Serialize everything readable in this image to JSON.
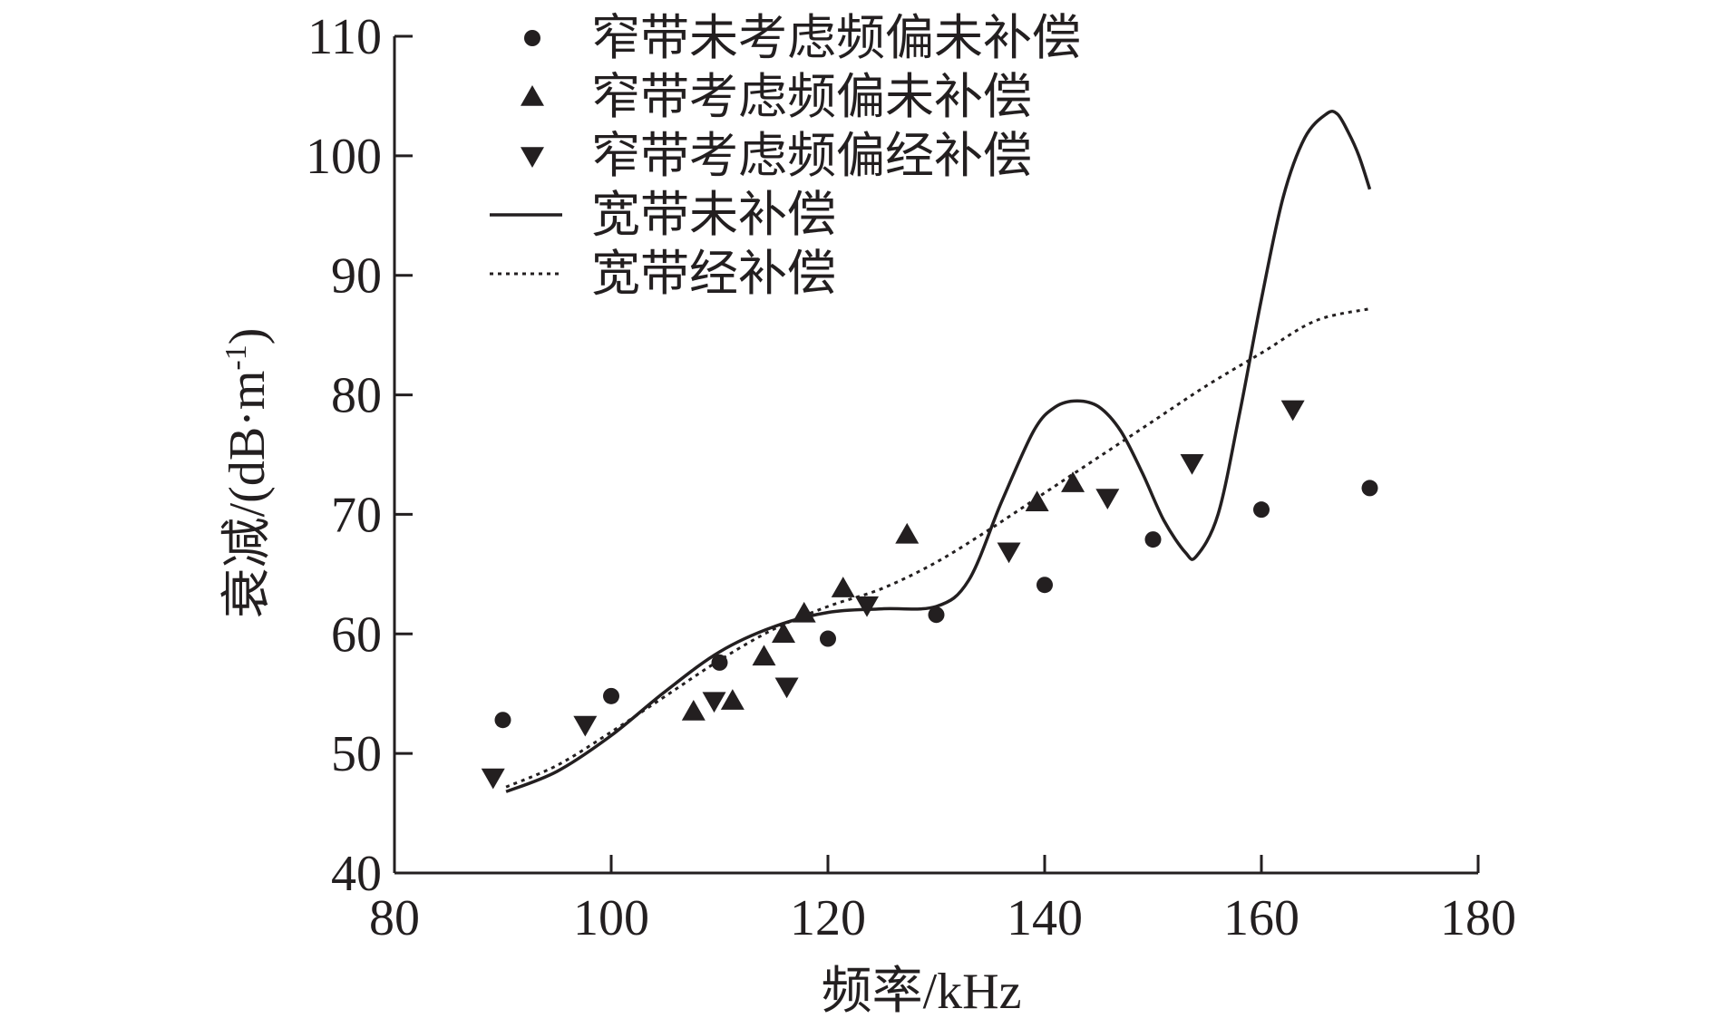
{
  "chart_data": {
    "type": "scatter",
    "xlabel": "频率/kHz",
    "ylabel": "衰减/(dB·m",
    "ylabel_superscript": "-1",
    "ylabel_close": ")",
    "xlim": [
      80,
      180
    ],
    "ylim": [
      40,
      110
    ],
    "xticks": [
      80,
      100,
      120,
      140,
      160,
      180
    ],
    "yticks": [
      40,
      50,
      60,
      70,
      80,
      90,
      100,
      110
    ],
    "grid": false,
    "legend_position": "top-left",
    "color": "#231f20",
    "series": [
      {
        "name": "窄带未考虑频偏未补偿",
        "marker": "circle",
        "points": [
          [
            90,
            52.8
          ],
          [
            100,
            54.8
          ],
          [
            110,
            57.6
          ],
          [
            120,
            59.6
          ],
          [
            130,
            61.6
          ],
          [
            140,
            64.1
          ],
          [
            150,
            67.9
          ],
          [
            160,
            70.4
          ],
          [
            170,
            72.2
          ]
        ]
      },
      {
        "name": "窄带考虑频偏未补偿",
        "marker": "triangle-up",
        "points": [
          [
            107.6,
            53.5
          ],
          [
            111.2,
            54.4
          ],
          [
            114.1,
            58.1
          ],
          [
            115.9,
            60.0
          ],
          [
            117.8,
            61.7
          ],
          [
            121.4,
            63.8
          ],
          [
            127.3,
            68.3
          ],
          [
            139.3,
            71.0
          ],
          [
            142.6,
            72.6
          ]
        ]
      },
      {
        "name": "窄带考虑频偏经补偿",
        "marker": "triangle-down",
        "points": [
          [
            89.1,
            48.0
          ],
          [
            97.6,
            52.4
          ],
          [
            109.5,
            54.4
          ],
          [
            116.2,
            55.6
          ],
          [
            123.6,
            62.4
          ],
          [
            136.7,
            66.9
          ],
          [
            145.8,
            71.4
          ],
          [
            153.6,
            74.3
          ],
          [
            162.9,
            78.8
          ]
        ]
      },
      {
        "name": "宽带未补偿",
        "style": "solid",
        "points": [
          [
            90.3,
            46.8
          ],
          [
            95,
            48.5
          ],
          [
            100,
            51.5
          ],
          [
            105,
            55.2
          ],
          [
            110,
            58.5
          ],
          [
            115,
            60.6
          ],
          [
            120,
            61.8
          ],
          [
            125,
            62.1
          ],
          [
            130,
            62.3
          ],
          [
            133,
            64.5
          ],
          [
            136,
            71.0
          ],
          [
            139,
            77.0
          ],
          [
            141,
            79.0
          ],
          [
            143,
            79.5
          ],
          [
            145,
            79.0
          ],
          [
            147,
            77.0
          ],
          [
            149,
            73.5
          ],
          [
            151,
            69.5
          ],
          [
            153,
            66.8
          ],
          [
            154,
            66.5
          ],
          [
            156,
            70.0
          ],
          [
            158,
            78.5
          ],
          [
            160,
            88.0
          ],
          [
            162,
            96.5
          ],
          [
            164,
            101.5
          ],
          [
            166,
            103.5
          ],
          [
            167,
            103.5
          ],
          [
            168,
            102.0
          ],
          [
            169,
            100.0
          ],
          [
            170,
            97.2
          ]
        ]
      },
      {
        "name": "宽带经补偿",
        "style": "dotted",
        "points": [
          [
            90.3,
            47.2
          ],
          [
            95,
            49.0
          ],
          [
            100,
            51.8
          ],
          [
            105,
            54.8
          ],
          [
            110,
            57.8
          ],
          [
            115,
            60.4
          ],
          [
            120,
            62.3
          ],
          [
            125,
            63.8
          ],
          [
            130,
            66.0
          ],
          [
            135,
            68.8
          ],
          [
            140,
            71.8
          ],
          [
            145,
            74.8
          ],
          [
            150,
            77.8
          ],
          [
            155,
            80.8
          ],
          [
            160,
            83.5
          ],
          [
            165,
            86.2
          ],
          [
            170,
            87.2
          ]
        ]
      }
    ]
  }
}
